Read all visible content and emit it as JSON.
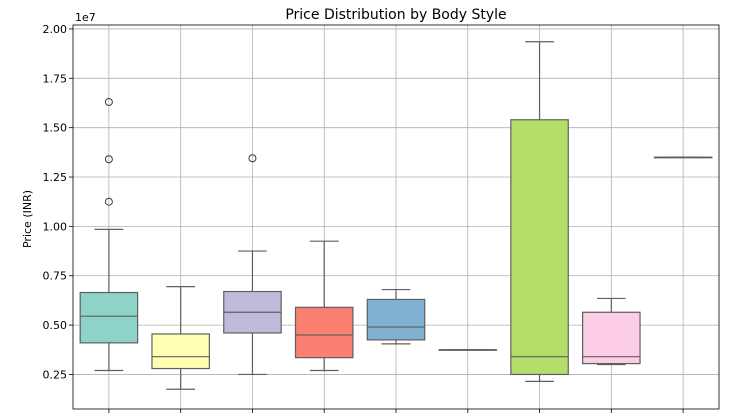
{
  "chart_data": {
    "type": "box",
    "title": "Price Distribution by Body Style",
    "ylabel": "Price (INR)",
    "xlabel": "",
    "y_offset_label": "1e7",
    "y_scale": 10000000,
    "ylim": [
      0.075,
      2.02
    ],
    "yticks": [
      0.25,
      0.5,
      0.75,
      1.0,
      1.25,
      1.5,
      1.75,
      2.0
    ],
    "ytick_labels": [
      "0.25",
      "0.50",
      "0.75",
      "1.00",
      "1.25",
      "1.50",
      "1.75",
      "2.00"
    ],
    "grid": true,
    "boxes": [
      {
        "color": "#8dd3c7",
        "whisker_low": 0.27,
        "q1": 0.41,
        "median": 0.545,
        "q3": 0.665,
        "whisker_high": 0.985,
        "outliers": [
          1.125,
          1.34,
          1.63
        ]
      },
      {
        "color": "#ffffb3",
        "whisker_low": 0.175,
        "q1": 0.28,
        "median": 0.34,
        "q3": 0.455,
        "whisker_high": 0.695,
        "outliers": []
      },
      {
        "color": "#bebada",
        "whisker_low": 0.25,
        "q1": 0.46,
        "median": 0.565,
        "q3": 0.67,
        "whisker_high": 0.875,
        "outliers": [
          1.345
        ]
      },
      {
        "color": "#fb8072",
        "whisker_low": 0.27,
        "q1": 0.335,
        "median": 0.45,
        "q3": 0.59,
        "whisker_high": 0.925,
        "outliers": []
      },
      {
        "color": "#80b1d3",
        "whisker_low": 0.405,
        "q1": 0.425,
        "median": 0.49,
        "q3": 0.63,
        "whisker_high": 0.68,
        "outliers": []
      },
      {
        "color": "#fdb462",
        "whisker_low": 0.375,
        "q1": 0.375,
        "median": 0.375,
        "q3": 0.375,
        "whisker_high": 0.375,
        "outliers": []
      },
      {
        "color": "#b3de69",
        "whisker_low": 0.215,
        "q1": 0.25,
        "median": 0.34,
        "q3": 1.54,
        "whisker_high": 1.935,
        "outliers": []
      },
      {
        "color": "#fccde5",
        "whisker_low": 0.3,
        "q1": 0.305,
        "median": 0.34,
        "q3": 0.565,
        "whisker_high": 0.635,
        "outliers": []
      },
      {
        "color": "#d9d9d9",
        "whisker_low": 1.35,
        "q1": 1.35,
        "median": 1.35,
        "q3": 1.35,
        "whisker_high": 1.35,
        "outliers": []
      }
    ]
  }
}
